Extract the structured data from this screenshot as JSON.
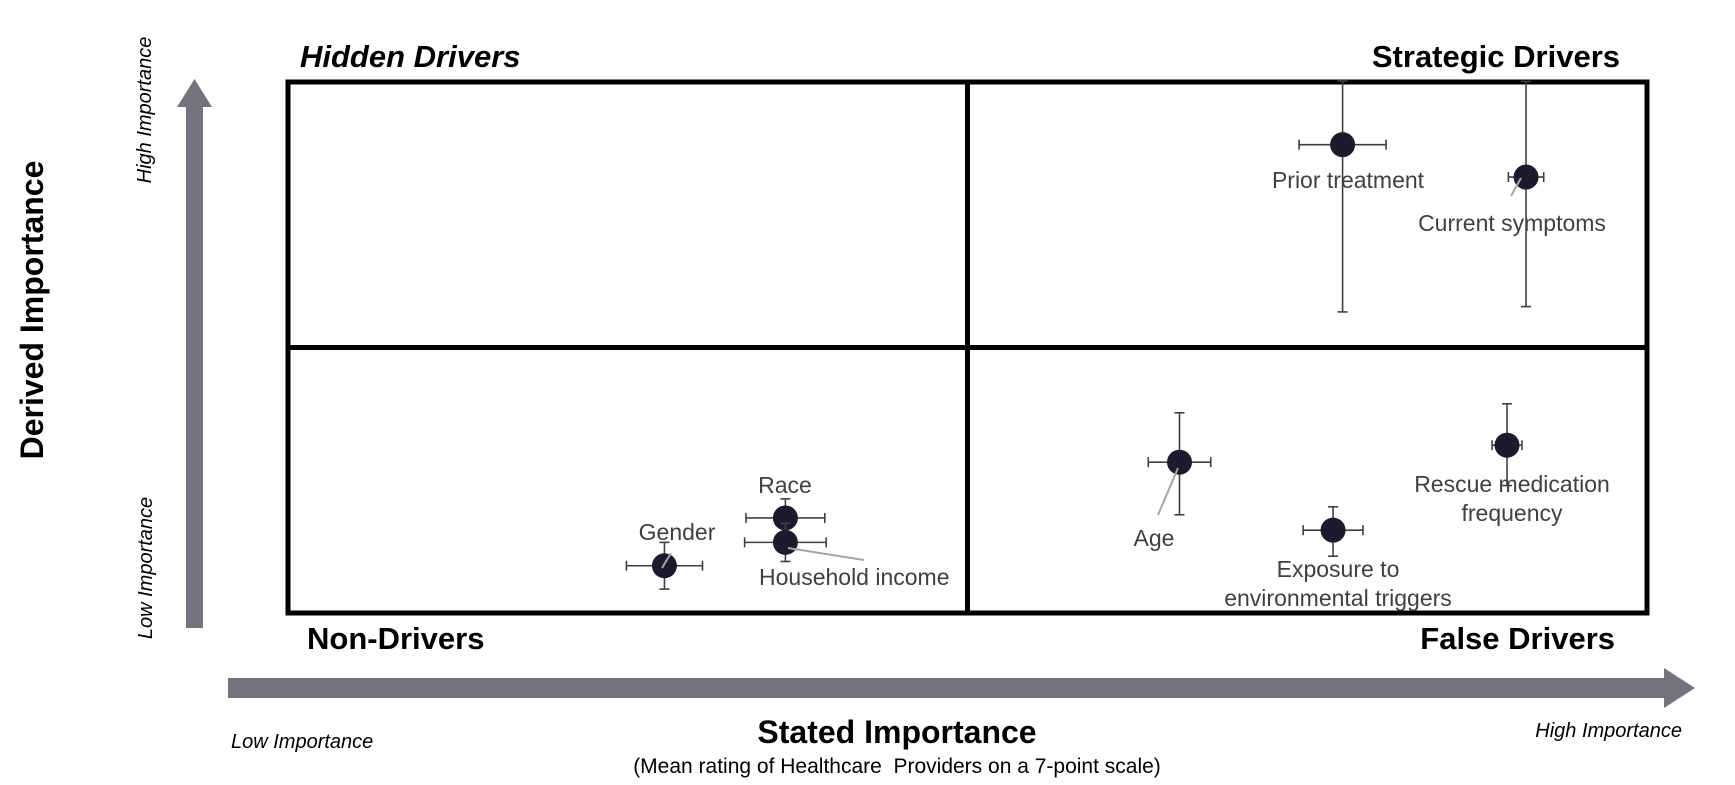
{
  "chart_data": {
    "type": "scatter",
    "x_axis": {
      "title": "Stated Importance",
      "subtitle": "(Mean rating of Healthcare  Providers on a 7-point scale)",
      "low_label": "Low Importance",
      "high_label": "High Importance"
    },
    "y_axis": {
      "title": "Derived Importance",
      "low_label": "Low Importance",
      "high_label": "High Importance"
    },
    "quadrants": {
      "top_left": "Hidden Drivers",
      "top_right": "Strategic Drivers",
      "bottom_left": "Non-Drivers",
      "bottom_right": "False Drivers"
    },
    "xlim": [
      0,
      100
    ],
    "ylim": [
      0,
      100
    ],
    "x_mid": 50,
    "y_mid": 50,
    "grid": false,
    "points": [
      {
        "label": [
          "Prior treatment"
        ],
        "x": 77.6,
        "y": 88.2,
        "x_err": 3.2,
        "y_err": [
          31.5,
          12.0
        ]
      },
      {
        "label": [
          "Current symptoms"
        ],
        "x": 91.1,
        "y": 82.1,
        "x_err": 1.3,
        "y_err": [
          24.4,
          18.0
        ]
      },
      {
        "label": [
          "Rescue medication",
          "frequency"
        ],
        "x": 89.7,
        "y": 31.6,
        "x_err": 1.1,
        "y_err": [
          7.6,
          7.8
        ]
      },
      {
        "label": [
          "Age"
        ],
        "x": 65.6,
        "y": 28.4,
        "x_err": 2.3,
        "y_err": [
          9.9,
          9.3
        ]
      },
      {
        "label": [
          "Exposure to",
          "environmental triggers"
        ],
        "x": 76.9,
        "y": 15.6,
        "x_err": 2.2,
        "y_err": [
          4.9,
          4.4
        ]
      },
      {
        "label": [
          "Race"
        ],
        "x": 36.6,
        "y": 17.9,
        "x_err": 2.9,
        "y_err": [
          3.6,
          3.6
        ]
      },
      {
        "label": [
          "Household income"
        ],
        "x": 36.6,
        "y": 13.3,
        "x_err": 3.0,
        "y_err": [
          3.6,
          3.6
        ]
      },
      {
        "label": [
          "Gender"
        ],
        "x": 27.7,
        "y": 8.9,
        "x_err": 2.8,
        "y_err": [
          4.4,
          4.4
        ]
      }
    ]
  }
}
